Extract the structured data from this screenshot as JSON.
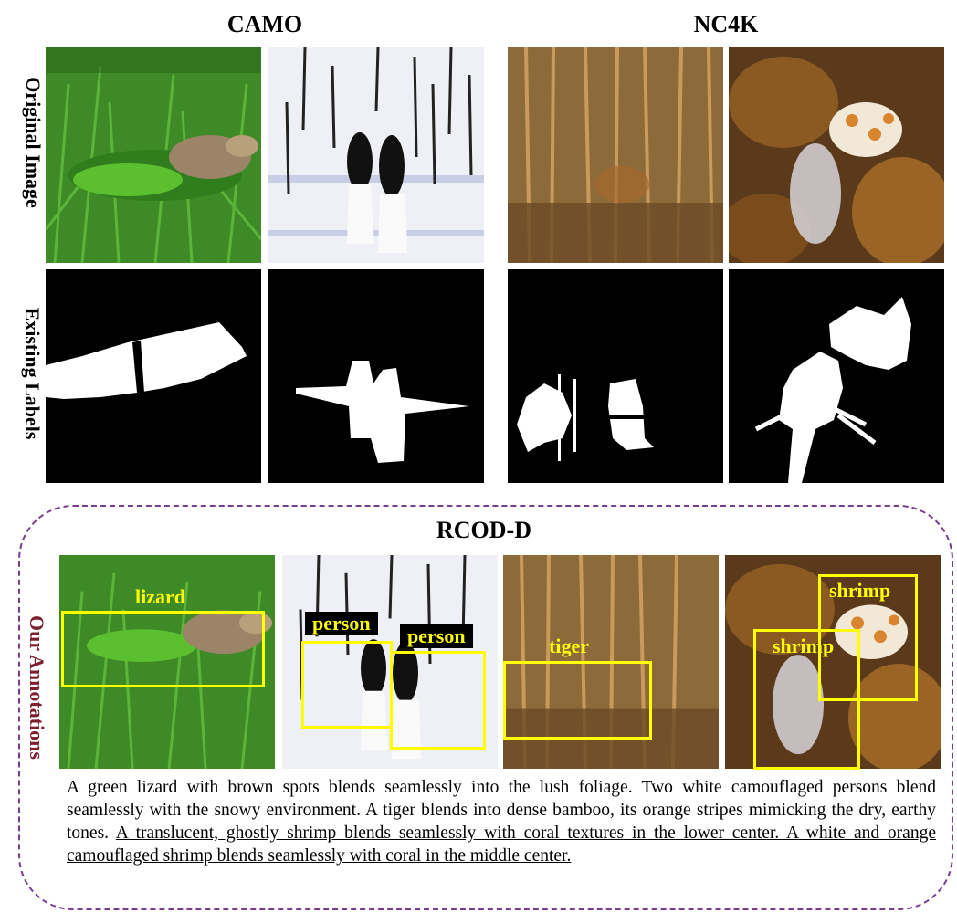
{
  "headings": {
    "camo": "CAMO",
    "nc4k": "NC4K",
    "rcod": "RCOD-D"
  },
  "row_labels": {
    "original": "Original Image",
    "existing": "Existing Labels",
    "ours": "Our Annotations"
  },
  "colors": {
    "box": "#ffff00",
    "dashed_border": "#7a3c93",
    "ours_label": "#7b1f2e"
  },
  "images": [
    {
      "dataset": "CAMO",
      "subject": "lizard"
    },
    {
      "dataset": "CAMO",
      "subject": "person"
    },
    {
      "dataset": "NC4K",
      "subject": "tiger"
    },
    {
      "dataset": "NC4K",
      "subject": "shrimp"
    }
  ],
  "annotation_tags": {
    "lizard": "lizard",
    "person_a": "person",
    "person_b": "person",
    "tiger": "tiger",
    "shrimp_a": "shrimp",
    "shrimp_b": "shrimp"
  },
  "caption": {
    "plain": "A green lizard with brown spots blends seamlessly into the lush foliage. Two white camouflaged persons blend seamlessly with the snowy environment. A tiger blends into dense bamboo, its orange stripes mimicking the dry, earthy tones. ",
    "underlined": "A translucent, ghostly shrimp blends seamlessly with coral textures in the lower center. A white and orange camouflaged shrimp blends seamlessly with coral in the middle center."
  }
}
